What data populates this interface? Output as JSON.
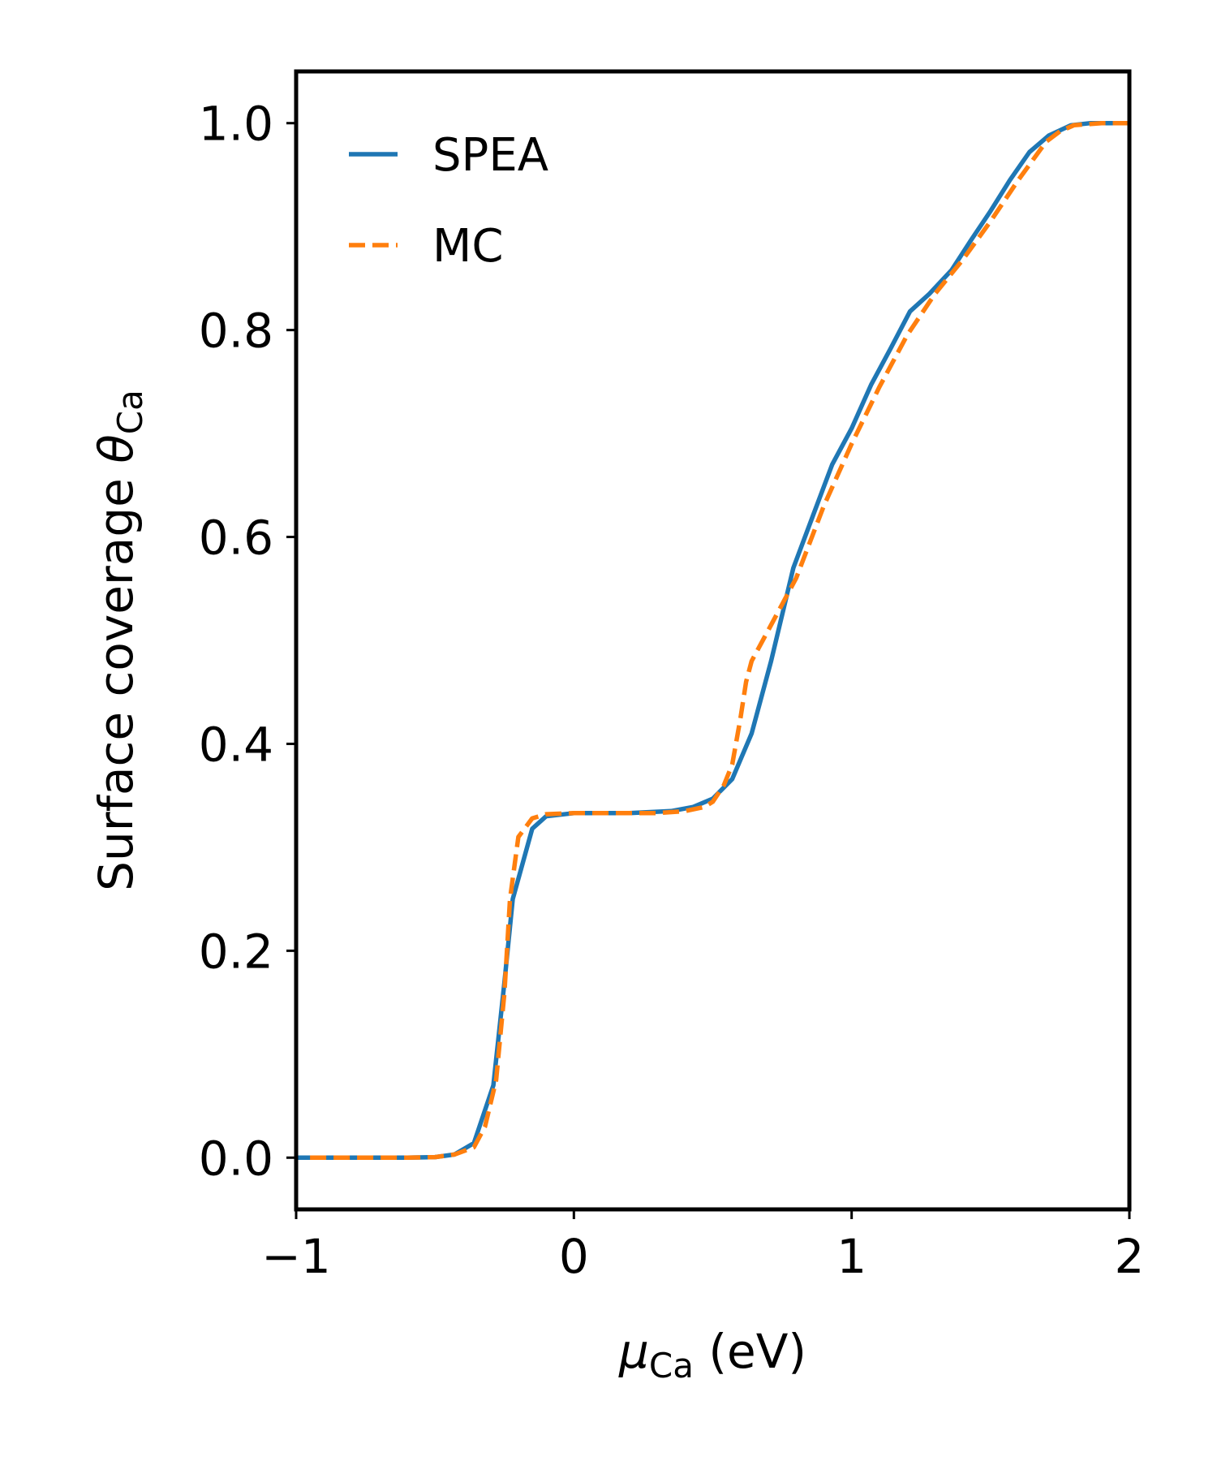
{
  "chart_data": {
    "type": "line",
    "xlabel": {
      "symbol": "μ",
      "sub": "Ca",
      "rest": " (eV)"
    },
    "ylabel": {
      "text": "Surface coverage ",
      "symbol": "θ",
      "sub": "Ca"
    },
    "xlim": [
      -1,
      2
    ],
    "ylim": [
      -0.05,
      1.05
    ],
    "xticks": [
      -1,
      0,
      1,
      2
    ],
    "xtick_labels": [
      "−1",
      "0",
      "1",
      "2"
    ],
    "yticks": [
      0.0,
      0.2,
      0.4,
      0.6,
      0.8,
      1.0
    ],
    "ytick_labels": [
      "0.0",
      "0.2",
      "0.4",
      "0.6",
      "0.8",
      "1.0"
    ],
    "grid": false,
    "legend_position": "upper-left",
    "series": [
      {
        "name": "SPEA",
        "color": "#1f77b4",
        "dash": "solid",
        "x": [
          -1.0,
          -0.8,
          -0.6,
          -0.5,
          -0.43,
          -0.36,
          -0.29,
          -0.25,
          -0.22,
          -0.15,
          -0.1,
          0.0,
          0.1,
          0.2,
          0.35,
          0.43,
          0.5,
          0.57,
          0.64,
          0.71,
          0.79,
          0.86,
          0.93,
          1.0,
          1.07,
          1.14,
          1.21,
          1.28,
          1.36,
          1.43,
          1.5,
          1.57,
          1.64,
          1.71,
          1.79,
          1.86,
          2.0
        ],
        "y": [
          0.0,
          0.0,
          0.0,
          0.0005,
          0.003,
          0.014,
          0.07,
          0.17,
          0.25,
          0.318,
          0.33,
          0.333,
          0.333,
          0.333,
          0.335,
          0.339,
          0.347,
          0.366,
          0.41,
          0.48,
          0.57,
          0.62,
          0.67,
          0.705,
          0.747,
          0.782,
          0.818,
          0.835,
          0.858,
          0.887,
          0.915,
          0.945,
          0.972,
          0.988,
          0.998,
          1.0,
          1.0
        ]
      },
      {
        "name": "MC",
        "color": "#ff7f0e",
        "dash": "dashed",
        "x": [
          -0.95,
          -0.8,
          -0.6,
          -0.5,
          -0.43,
          -0.36,
          -0.32,
          -0.28,
          -0.25,
          -0.23,
          -0.2,
          -0.15,
          -0.1,
          0.0,
          0.1,
          0.2,
          0.3,
          0.4,
          0.47,
          0.5,
          0.54,
          0.57,
          0.6,
          0.62,
          0.64,
          0.7,
          0.75,
          0.8,
          0.9,
          1.0,
          1.1,
          1.2,
          1.3,
          1.4,
          1.5,
          1.6,
          1.7,
          1.75,
          1.8,
          1.9,
          2.0
        ],
        "y": [
          0.0,
          0.0,
          0.0,
          0.0005,
          0.003,
          0.01,
          0.03,
          0.075,
          0.16,
          0.25,
          0.31,
          0.328,
          0.332,
          0.333,
          0.333,
          0.333,
          0.333,
          0.335,
          0.339,
          0.344,
          0.36,
          0.38,
          0.425,
          0.46,
          0.48,
          0.51,
          0.535,
          0.56,
          0.63,
          0.69,
          0.745,
          0.795,
          0.835,
          0.868,
          0.905,
          0.945,
          0.982,
          0.992,
          0.998,
          1.0,
          1.0
        ]
      }
    ]
  }
}
